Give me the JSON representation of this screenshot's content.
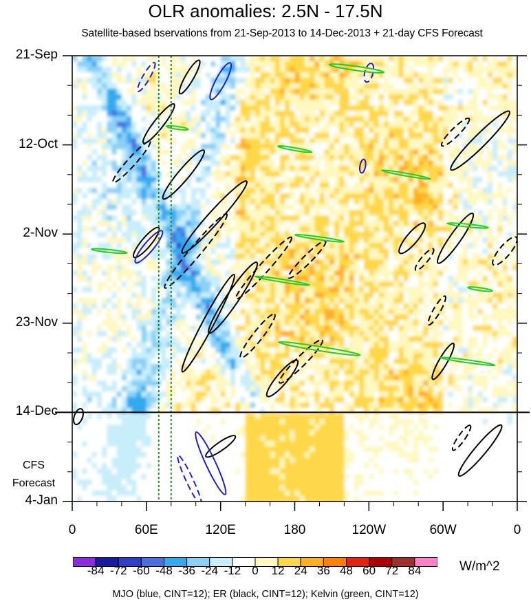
{
  "chart_data": {
    "type": "heatmap",
    "title": "OLR anomalies: 2.5N - 17.5N",
    "subtitle": "Satellite-based bservations from 21-Sep-2013 to 14-Dec-2013 + 21-day CFS Forecast",
    "x_ticks": [
      "0",
      "60E",
      "120E",
      "180",
      "120W",
      "60W",
      "0"
    ],
    "x_tick_values": [
      0,
      60,
      120,
      180,
      240,
      300,
      360
    ],
    "y_ticks": [
      "21-Sep",
      "12-Oct",
      "2-Nov",
      "23-Nov",
      "14-Dec",
      "4-Jan"
    ],
    "y_tick_days": [
      0,
      21,
      42,
      63,
      84,
      105
    ],
    "forecast_start": "14-Dec",
    "forecast_label": [
      "CFS",
      "Forecast"
    ],
    "colorbar": {
      "levels": [
        "-84",
        "-72",
        "-60",
        "-48",
        "-36",
        "-24",
        "-12",
        "0",
        "12",
        "24",
        "36",
        "48",
        "60",
        "72",
        "84"
      ],
      "colors": [
        "#8a2be2",
        "#1a1aa0",
        "#2f3fc8",
        "#4a70e0",
        "#33aaf0",
        "#8ad0f8",
        "#c8eefc",
        "#ffffff",
        "#fff8c0",
        "#ffd84a",
        "#ffb020",
        "#ff8000",
        "#e82010",
        "#b00000",
        "#a03030",
        "#ff80c8"
      ],
      "units": "W/m^2"
    },
    "contours": [
      {
        "name": "MJO",
        "color": "#2020c8",
        "cint": 12
      },
      {
        "name": "ER",
        "color": "#000000",
        "cint": 12
      },
      {
        "name": "Kelvin",
        "color": "#20d020",
        "cint": 12
      }
    ],
    "caption": "MJO (blue, CINT=12); ER (black, CINT=12); Kelvin (green, CINT=12)",
    "reference_lines_lon": [
      70,
      80
    ]
  }
}
